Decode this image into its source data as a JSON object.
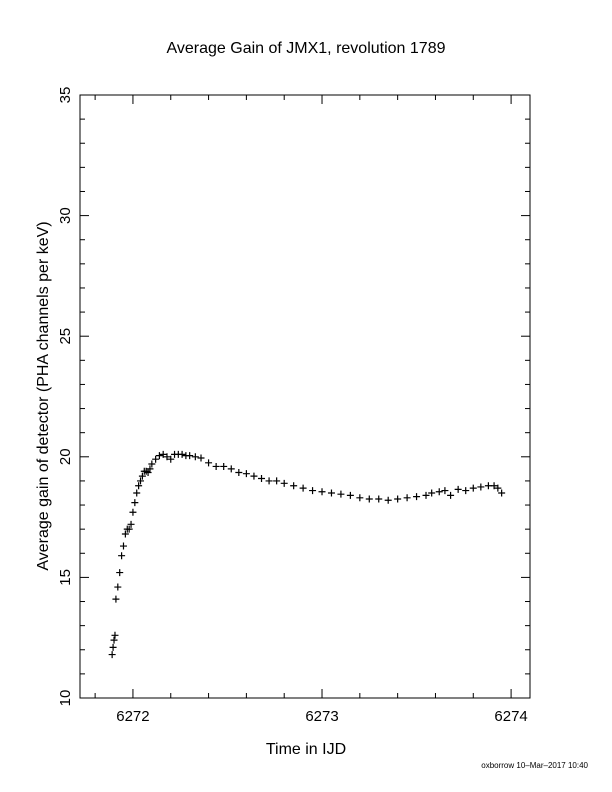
{
  "chart_data": {
    "type": "scatter",
    "title": "Average Gain of JMX1, revolution 1789",
    "xlabel": "Time in IJD",
    "ylabel": "Average gain of detector (PHA channels per keV)",
    "xlim": [
      6271.72,
      6274.1
    ],
    "ylim": [
      10,
      35
    ],
    "x_ticks": [
      6272,
      6273,
      6274
    ],
    "x_tick_labels": [
      "6272",
      "6273",
      "6274"
    ],
    "y_ticks": [
      10,
      15,
      20,
      25,
      30,
      35
    ],
    "y_tick_labels": [
      "10",
      "15",
      "20",
      "25",
      "30",
      "35"
    ],
    "marker": "plus",
    "grid": false,
    "legend": "none",
    "colors": {
      "points": "#000000",
      "axes": "#000000",
      "background": "#ffffff"
    },
    "series": [
      {
        "x": [
          6271.89,
          6271.895,
          6271.9,
          6271.905,
          6271.91,
          6271.92,
          6271.93,
          6271.94,
          6271.95,
          6271.96,
          6271.97,
          6271.98,
          6271.99,
          6272.0,
          6272.01,
          6272.02,
          6272.03,
          6272.04,
          6272.05,
          6272.06,
          6272.07,
          6272.08,
          6272.09,
          6272.1,
          6272.12,
          6272.14,
          6272.16,
          6272.18,
          6272.2,
          6272.22,
          6272.24,
          6272.26,
          6272.28,
          6272.3,
          6272.33,
          6272.36,
          6272.4,
          6272.44,
          6272.48,
          6272.52,
          6272.56,
          6272.6,
          6272.64,
          6272.68,
          6272.72,
          6272.76,
          6272.8,
          6272.85,
          6272.9,
          6272.95,
          6273.0,
          6273.05,
          6273.1,
          6273.15,
          6273.2,
          6273.25,
          6273.3,
          6273.35,
          6273.4,
          6273.45,
          6273.5,
          6273.55,
          6273.58,
          6273.62,
          6273.65,
          6273.68,
          6273.72,
          6273.76,
          6273.8,
          6273.84,
          6273.88,
          6273.91,
          6273.93,
          6273.95
        ],
        "y": [
          11.8,
          12.1,
          12.4,
          12.6,
          14.1,
          14.6,
          15.2,
          15.9,
          16.3,
          16.8,
          17.0,
          17.0,
          17.2,
          17.7,
          18.1,
          18.5,
          18.8,
          19.0,
          19.2,
          19.4,
          19.4,
          19.35,
          19.5,
          19.7,
          19.9,
          20.05,
          20.1,
          20.0,
          19.9,
          20.1,
          20.1,
          20.1,
          20.05,
          20.05,
          20.0,
          19.95,
          19.75,
          19.6,
          19.6,
          19.5,
          19.35,
          19.3,
          19.2,
          19.1,
          19.0,
          19.0,
          18.9,
          18.8,
          18.7,
          18.6,
          18.55,
          18.5,
          18.45,
          18.4,
          18.3,
          18.25,
          18.25,
          18.2,
          18.25,
          18.3,
          18.35,
          18.4,
          18.5,
          18.55,
          18.6,
          18.4,
          18.65,
          18.6,
          18.7,
          18.75,
          18.8,
          18.8,
          18.7,
          18.5
        ]
      }
    ]
  },
  "footer": {
    "text": "oxborrow 10–Mar–2017 10:40"
  }
}
